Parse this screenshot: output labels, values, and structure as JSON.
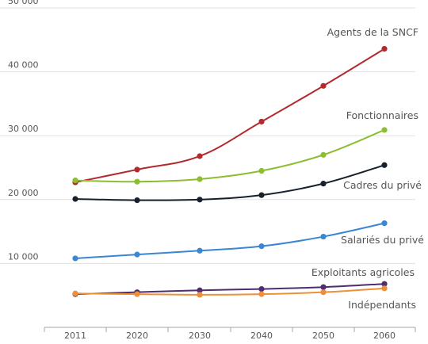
{
  "chart_data": {
    "type": "line",
    "title": "",
    "xlabel": "",
    "ylabel": "",
    "x": [
      "2011",
      "2020",
      "2030",
      "2040",
      "2050",
      "2060"
    ],
    "y_ticks": [
      "10 000",
      "20 000",
      "30 000",
      "40 000",
      "50 000"
    ],
    "y_tick_values": [
      10000,
      20000,
      30000,
      40000,
      50000
    ],
    "ylim": [
      0,
      50000
    ],
    "grid": "horizontal",
    "series": [
      {
        "name": "Agents de la SNCF",
        "color": "#b22a2e",
        "values": [
          22700,
          24700,
          26800,
          32200,
          37800,
          43600
        ]
      },
      {
        "name": "Fonctionnaires",
        "color": "#8dbd31",
        "values": [
          23000,
          22800,
          23200,
          24500,
          27000,
          30900
        ]
      },
      {
        "name": "Cadres du privé",
        "color": "#17212b",
        "values": [
          20100,
          19900,
          20000,
          20700,
          22500,
          25400
        ]
      },
      {
        "name": "Salariés du privé",
        "color": "#3a86d0",
        "values": [
          10800,
          11400,
          12000,
          12700,
          14200,
          16300
        ]
      },
      {
        "name": "Exploitants agricoles",
        "color": "#4f2d6e",
        "values": [
          5200,
          5500,
          5800,
          6000,
          6300,
          6800
        ]
      },
      {
        "name": "Indépendants",
        "color": "#ee8f3a",
        "values": [
          5300,
          5200,
          5100,
          5200,
          5500,
          6100
        ]
      }
    ]
  }
}
